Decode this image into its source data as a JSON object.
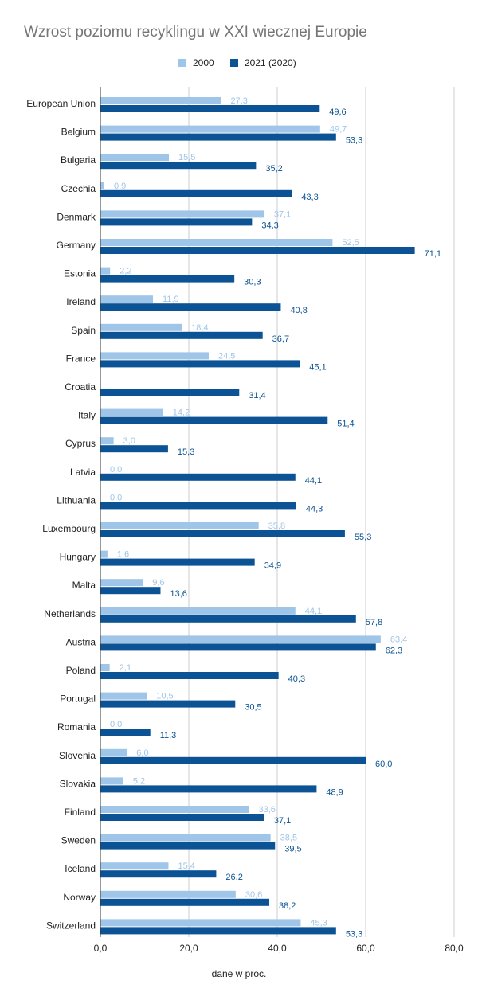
{
  "chart_data": {
    "type": "bar",
    "orientation": "horizontal",
    "title": "Wzrost poziomu recyklingu w XXI wiecznej Europie",
    "xlabel": "dane w proc.",
    "ylabel": "",
    "xlim": [
      0,
      80
    ],
    "ticks": [
      0,
      20,
      40,
      60,
      80
    ],
    "tick_labels": [
      "0,0",
      "20,0",
      "40,0",
      "60,0",
      "80,0"
    ],
    "grid": true,
    "legend_position": "top",
    "categories": [
      "European Union",
      "Belgium",
      "Bulgaria",
      "Czechia",
      "Denmark",
      "Germany",
      "Estonia",
      "Ireland",
      "Spain",
      "France",
      "Croatia",
      "Italy",
      "Cyprus",
      "Latvia",
      "Lithuania",
      "Luxembourg",
      "Hungary",
      "Malta",
      "Netherlands",
      "Austria",
      "Poland",
      "Portugal",
      "Romania",
      "Slovenia",
      "Slovakia",
      "Finland",
      "Sweden",
      "Iceland",
      "Norway",
      "Switzerland"
    ],
    "series": [
      {
        "name": "2000",
        "color": "#9fc5e8",
        "values": [
          27.3,
          49.7,
          15.5,
          0.9,
          37.1,
          52.5,
          2.2,
          11.9,
          18.4,
          24.5,
          null,
          14.2,
          3.0,
          0.0,
          0.0,
          35.8,
          1.6,
          9.6,
          44.1,
          63.4,
          2.1,
          10.5,
          0.0,
          6.0,
          5.2,
          33.6,
          38.5,
          15.4,
          30.6,
          45.3
        ],
        "labels": [
          "27,3",
          "49,7",
          "15,5",
          "0,9",
          "37,1",
          "52,5",
          "2,2",
          "11,9",
          "18,4",
          "24,5",
          "",
          "14,2",
          "3,0",
          "0,0",
          "0,0",
          "35,8",
          "1,6",
          "9,6",
          "44,1",
          "63,4",
          "2,1",
          "10,5",
          "0,0",
          "6,0",
          "5,2",
          "33,6",
          "38,5",
          "15,4",
          "30,6",
          "45,3"
        ]
      },
      {
        "name": "2021 (2020)",
        "color": "#0b5394",
        "values": [
          49.6,
          53.3,
          35.2,
          43.3,
          34.3,
          71.1,
          30.3,
          40.8,
          36.7,
          45.1,
          31.4,
          51.4,
          15.3,
          44.1,
          44.3,
          55.3,
          34.9,
          13.6,
          57.8,
          62.3,
          40.3,
          30.5,
          11.3,
          60.0,
          48.9,
          37.1,
          39.5,
          26.2,
          38.2,
          53.3
        ],
        "labels": [
          "49,6",
          "53,3",
          "35,2",
          "43,3",
          "34,3",
          "71,1",
          "30,3",
          "40,8",
          "36,7",
          "45,1",
          "31,4",
          "51,4",
          "15,3",
          "44,1",
          "44,3",
          "55,3",
          "34,9",
          "13,6",
          "57,8",
          "62,3",
          "40,3",
          "30,5",
          "11,3",
          "60,0",
          "48,9",
          "37,1",
          "39,5",
          "26,2",
          "38,2",
          "53,3"
        ]
      }
    ]
  }
}
